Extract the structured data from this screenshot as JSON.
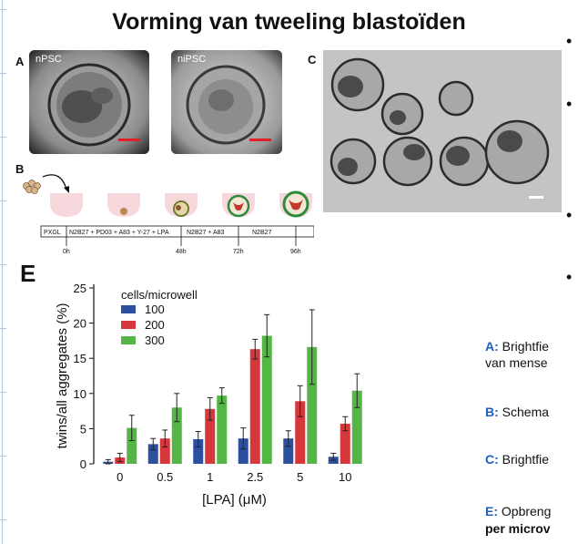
{
  "title": "Vorming van tweeling blastoïden",
  "panels": {
    "a": {
      "letter": "A",
      "img1_label": "nPSC",
      "img2_label": "niPSC"
    },
    "b": {
      "letter": "B",
      "timeline_cells": [
        "PXGL",
        "N2B27 + PD03 + A83 + Y-27 + LPA",
        "N2B27 + A83",
        "N2B27"
      ],
      "times": [
        "0h",
        "48h",
        "72h",
        "96h"
      ]
    },
    "c": {
      "letter": "C"
    },
    "e": {
      "letter": "E"
    }
  },
  "captions": [
    {
      "key": "A:",
      "text": " Brightfie",
      "line2": "van mense"
    },
    {
      "key": "B:",
      "text": " Schema"
    },
    {
      "key": "C:",
      "text": " Brightfie"
    },
    {
      "key": "E:",
      "text": " Opbreng",
      "line2": "per microv"
    }
  ],
  "bullets": [
    "•",
    "•",
    "•",
    "•"
  ],
  "colors": {
    "s100": "#2d4fa0",
    "s200": "#d6373a",
    "s300": "#55b547",
    "caption_key": "#1f5fbf",
    "scalebar": "#e0202a"
  },
  "chart_data": {
    "type": "bar",
    "categories": [
      "0",
      "0.5",
      "1",
      "2.5",
      "5",
      "10"
    ],
    "xlabel": "[LPA] (μM)",
    "ylabel": "twins/all aggregates (%)",
    "ylim": [
      0,
      25
    ],
    "yticks": [
      "0",
      "5",
      "10",
      "15",
      "20",
      "25"
    ],
    "legend_title": "cells/microwell",
    "legend_position": "top-left",
    "series": [
      {
        "name": "100",
        "color": "#2d4fa0",
        "values": [
          0.3,
          2.8,
          3.5,
          3.6,
          3.6,
          1.0
        ],
        "errors": [
          0.3,
          0.8,
          1.1,
          1.5,
          1.1,
          0.5
        ]
      },
      {
        "name": "200",
        "color": "#d6373a",
        "values": [
          0.9,
          3.6,
          7.8,
          16.3,
          8.9,
          5.7
        ],
        "errors": [
          0.6,
          1.2,
          1.6,
          1.4,
          2.2,
          1.0
        ]
      },
      {
        "name": "300",
        "color": "#55b547",
        "values": [
          5.1,
          8.0,
          9.7,
          18.2,
          16.6,
          10.4
        ],
        "errors": [
          1.8,
          2.0,
          1.1,
          3.0,
          5.3,
          2.4
        ]
      }
    ]
  }
}
